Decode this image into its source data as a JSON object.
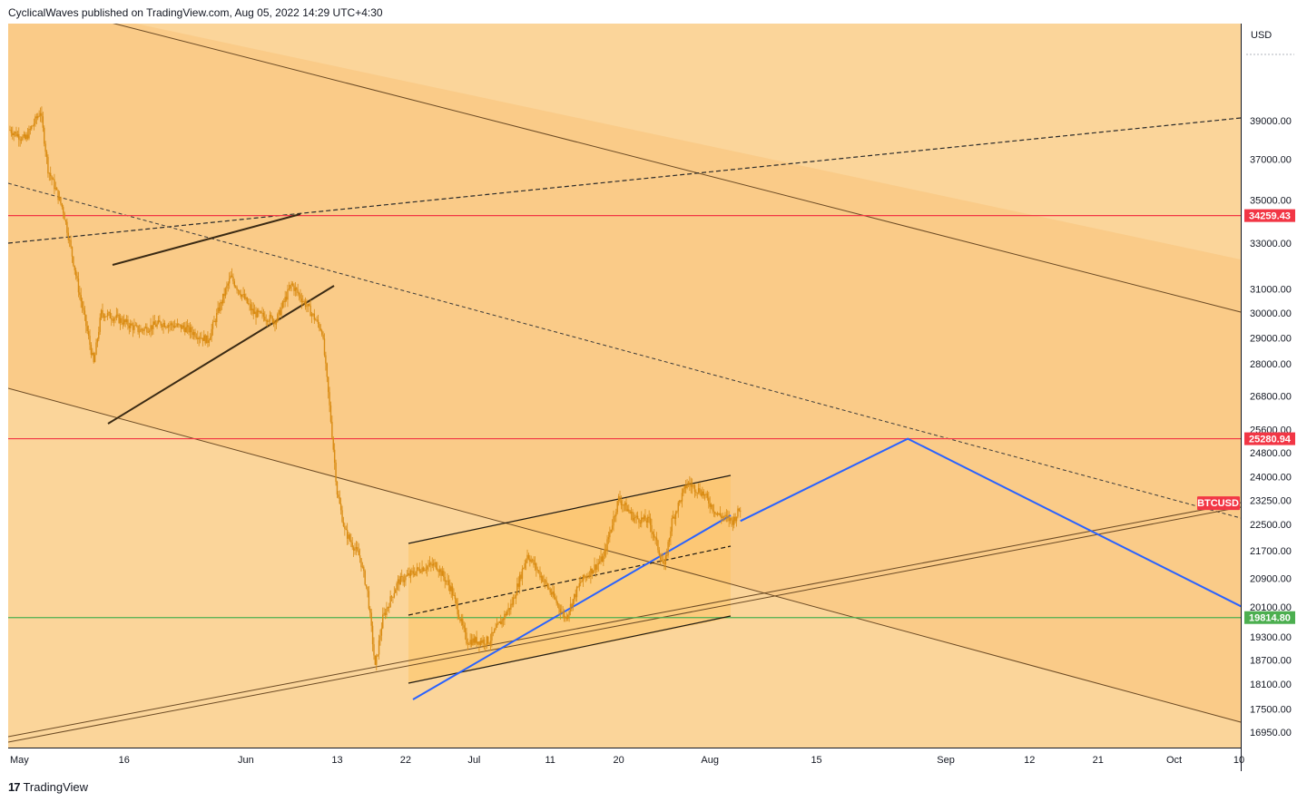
{
  "header": {
    "publisher": "CyclicalWaves published on TradingView.com, Aug 05, 2022 14:29 UTC+4:30"
  },
  "footer": {
    "logo_mark": "17",
    "brand": "TradingView",
    "logo_icon": "tradingview-logo-icon"
  },
  "colors": {
    "background": "#fbd59a",
    "channel_fill": "#f9c27a",
    "flag_fill": "#fdc466",
    "candle": "#d98b12",
    "red_line": "#f23645",
    "green_line": "#4caf50",
    "blue_line": "#2962ff",
    "trend_line": "#6b4a24"
  },
  "chart_data": {
    "type": "candlestick",
    "symbol": "BTCUSD",
    "currency_label": "USD",
    "x_ticks": [
      "May",
      "16",
      "Jun",
      "13",
      "22",
      "Jul",
      "11",
      "20",
      "Aug",
      "15",
      "Sep",
      "12",
      "21",
      "Oct",
      "10"
    ],
    "y_ticks": [
      16950,
      17500,
      18100,
      18700,
      19300,
      20100,
      20900,
      21700,
      22500,
      23250,
      24000,
      24800,
      25600,
      26800,
      28000,
      29000,
      30000,
      31000,
      33000,
      35000,
      37000,
      39000
    ],
    "y_tick_labels": [
      "16950.00",
      "17500.00",
      "18100.00",
      "18700.00",
      "19300.00",
      "20100.00",
      "20900.00",
      "21700.00",
      "22500.00",
      "23250.00",
      "24000.00",
      "24800.00",
      "25600.00",
      "26800.00",
      "28000.00",
      "29000.00",
      "30000.00",
      "31000.00",
      "33000.00",
      "35000.00",
      "37000.00",
      "39000.00"
    ],
    "y_scale": "log",
    "ylim": [
      16600,
      44500
    ],
    "xlim": [
      "2022-05-01",
      "2022-10-10"
    ],
    "horizontal_levels": [
      {
        "label": "34259.43",
        "value": 34259.43,
        "color": "#f23645"
      },
      {
        "label": "25280.94",
        "value": 25280.94,
        "color": "#f23645"
      },
      {
        "label": "19814.80",
        "value": 19814.8,
        "color": "#4caf50"
      }
    ],
    "last_price_badge": {
      "label": "BTCUSD",
      "value": 23000,
      "color": "#f23645"
    },
    "price_path": [
      [
        "2022-05-01",
        38500
      ],
      [
        "2022-05-03",
        38000
      ],
      [
        "2022-05-05",
        39500
      ],
      [
        "2022-05-06",
        36500
      ],
      [
        "2022-05-08",
        34500
      ],
      [
        "2022-05-10",
        31000
      ],
      [
        "2022-05-12",
        28000
      ],
      [
        "2022-05-13",
        30000
      ],
      [
        "2022-05-15",
        29800
      ],
      [
        "2022-05-18",
        29300
      ],
      [
        "2022-05-21",
        29600
      ],
      [
        "2022-05-24",
        29400
      ],
      [
        "2022-05-27",
        28900
      ],
      [
        "2022-05-30",
        31500
      ],
      [
        "2022-06-02",
        30000
      ],
      [
        "2022-06-05",
        29700
      ],
      [
        "2022-06-07",
        31200
      ],
      [
        "2022-06-09",
        30300
      ],
      [
        "2022-06-11",
        29300
      ],
      [
        "2022-06-13",
        23500
      ],
      [
        "2022-06-14",
        22300
      ],
      [
        "2022-06-16",
        21500
      ],
      [
        "2022-06-17",
        20500
      ],
      [
        "2022-06-18",
        18500
      ],
      [
        "2022-06-19",
        19800
      ],
      [
        "2022-06-21",
        20800
      ],
      [
        "2022-06-24",
        21200
      ],
      [
        "2022-06-26",
        21300
      ],
      [
        "2022-06-28",
        20600
      ],
      [
        "2022-06-30",
        19200
      ],
      [
        "2022-07-03",
        19200
      ],
      [
        "2022-07-06",
        20200
      ],
      [
        "2022-07-08",
        21600
      ],
      [
        "2022-07-10",
        20900
      ],
      [
        "2022-07-13",
        19800
      ],
      [
        "2022-07-15",
        20800
      ],
      [
        "2022-07-18",
        21500
      ],
      [
        "2022-07-20",
        23300
      ],
      [
        "2022-07-22",
        22700
      ],
      [
        "2022-07-24",
        22600
      ],
      [
        "2022-07-26",
        21200
      ],
      [
        "2022-07-27",
        22600
      ],
      [
        "2022-07-29",
        23800
      ],
      [
        "2022-07-31",
        23500
      ],
      [
        "2022-08-02",
        22800
      ],
      [
        "2022-08-04",
        22600
      ],
      [
        "2022-08-05",
        23000
      ]
    ],
    "projection": [
      [
        "2022-08-05",
        22600
      ],
      [
        "2022-08-27",
        25280.94
      ],
      [
        "2022-10-10",
        20100
      ]
    ]
  }
}
